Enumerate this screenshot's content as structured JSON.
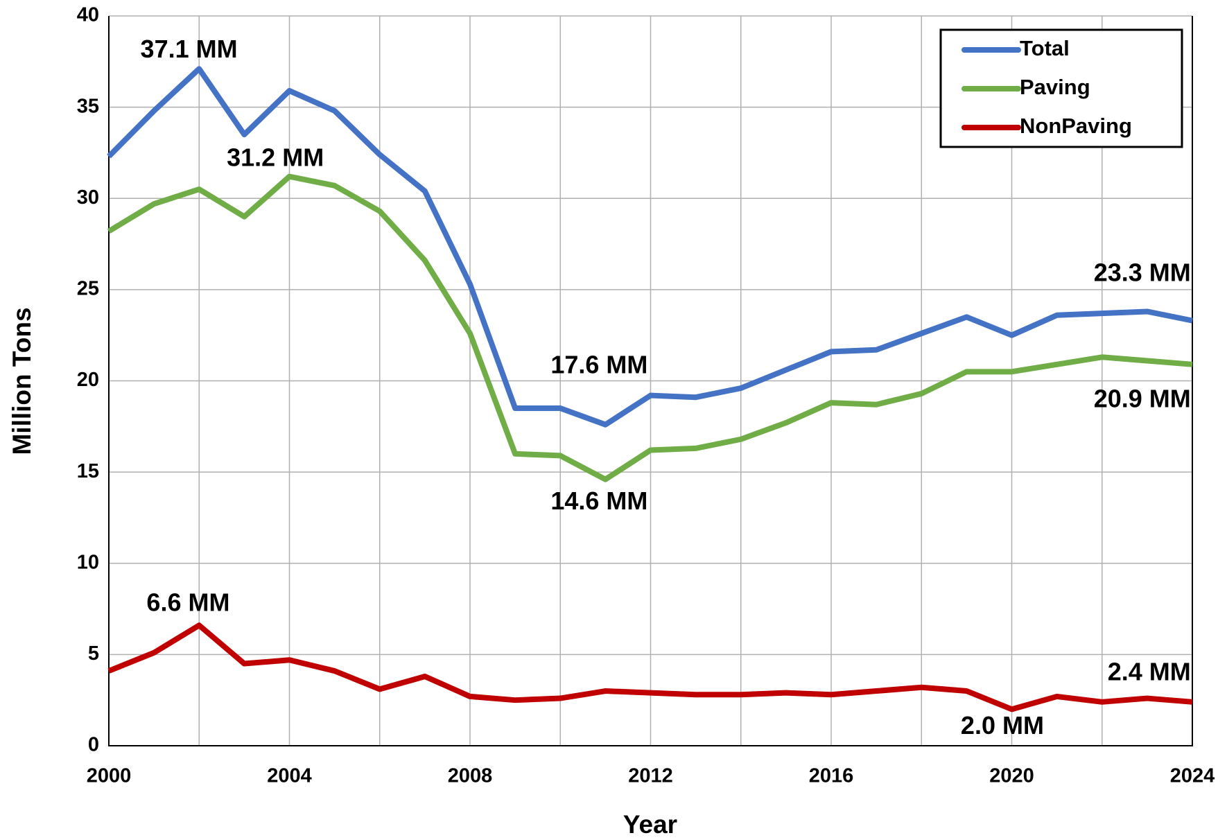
{
  "chart_data": {
    "type": "line",
    "x_label": "Year",
    "y_label": "Million Tons",
    "x": [
      2000,
      2001,
      2002,
      2003,
      2004,
      2005,
      2006,
      2007,
      2008,
      2009,
      2010,
      2011,
      2012,
      2013,
      2014,
      2015,
      2016,
      2017,
      2018,
      2019,
      2020,
      2021,
      2022,
      2023,
      2024
    ],
    "series": [
      {
        "name": "Total",
        "color": "#4472c4",
        "values": [
          32.3,
          34.8,
          37.1,
          33.5,
          35.9,
          34.8,
          32.4,
          30.4,
          25.3,
          18.5,
          18.5,
          17.6,
          19.2,
          19.1,
          19.6,
          20.6,
          21.6,
          21.7,
          22.6,
          23.5,
          22.5,
          23.6,
          23.7,
          23.8,
          23.3
        ],
        "annotations": [
          {
            "x": 2002,
            "label": "37.1 MM"
          },
          {
            "x": 2011,
            "label": "17.6 MM"
          },
          {
            "x": 2024,
            "label": "23.3 MM"
          }
        ]
      },
      {
        "name": "Paving",
        "color": "#70ad47",
        "values": [
          28.2,
          29.7,
          30.5,
          29.0,
          31.2,
          30.7,
          29.3,
          26.6,
          22.6,
          16.0,
          15.9,
          14.6,
          16.2,
          16.3,
          16.8,
          17.7,
          18.8,
          18.7,
          19.3,
          20.5,
          20.5,
          20.9,
          21.3,
          21.1,
          20.9
        ],
        "annotations": [
          {
            "x": 2004,
            "label": "31.2 MM"
          },
          {
            "x": 2011,
            "label": "14.6 MM"
          },
          {
            "x": 2024,
            "label": "20.9 MM"
          }
        ]
      },
      {
        "name": "NonPaving",
        "color": "#c00000",
        "values": [
          4.1,
          5.1,
          6.6,
          4.5,
          4.7,
          4.1,
          3.1,
          3.8,
          2.7,
          2.5,
          2.6,
          3.0,
          2.9,
          2.8,
          2.8,
          2.9,
          2.8,
          3.0,
          3.2,
          3.0,
          2.0,
          2.7,
          2.4,
          2.6,
          2.4
        ],
        "annotations": [
          {
            "x": 2002,
            "label": "6.6 MM"
          },
          {
            "x": 2020,
            "label": "2.0 MM"
          },
          {
            "x": 2024,
            "label": "2.4 MM"
          }
        ]
      }
    ],
    "xlim": [
      2000,
      2024
    ],
    "xticks": [
      2000,
      2004,
      2008,
      2012,
      2016,
      2020,
      2024
    ],
    "xgrid_minor": [
      2002,
      2006,
      2010,
      2014,
      2018,
      2022
    ],
    "ylim": [
      0,
      40
    ],
    "yticks": [
      0,
      5,
      10,
      15,
      20,
      25,
      30,
      35,
      40
    ],
    "grid": true,
    "legend": "upper right"
  }
}
